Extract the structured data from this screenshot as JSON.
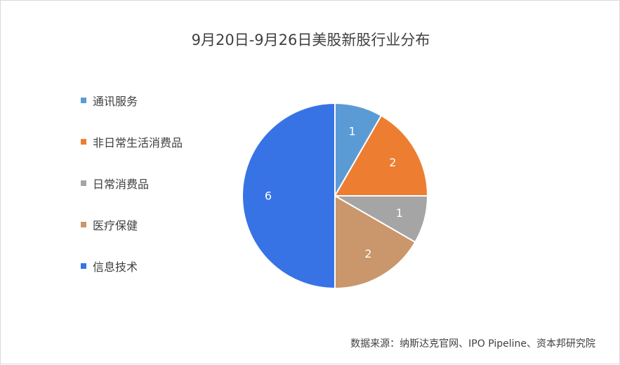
{
  "chart_data": {
    "type": "pie",
    "title": "9月20日-9月26日美股新股行业分布",
    "categories": [
      "通讯服务",
      "非日常生活消费品",
      "日常消费品",
      "医疗保健",
      "信息技术"
    ],
    "values": [
      1,
      2,
      1,
      2,
      6
    ],
    "colors": [
      "#5b9bd5",
      "#ed7d31",
      "#a5a5a5",
      "#c9976b",
      "#3873e6"
    ],
    "legend_position": "left",
    "data_labels": true
  },
  "source": "数据来源：纳斯达克官网、IPO Pipeline、资本邦研究院"
}
